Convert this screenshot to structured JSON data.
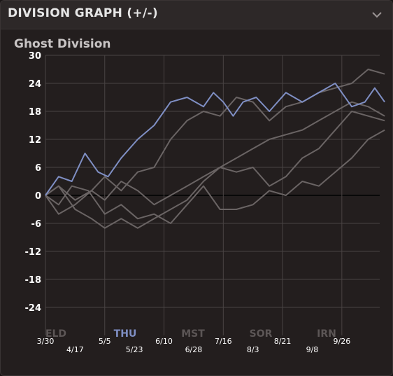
{
  "header": {
    "title": "DIVISION GRAPH (+/-)",
    "toggle_icon": "chevron-down-icon"
  },
  "chart_title": "Ghost Division",
  "tabs": [
    {
      "label": "ELD",
      "active": false
    },
    {
      "label": "THU",
      "active": true
    },
    {
      "label": "MST",
      "active": false
    },
    {
      "label": "SOR",
      "active": false
    },
    {
      "label": "IRN",
      "active": false
    }
  ],
  "colors": {
    "highlight": "#7f8fc4",
    "other": "#6a6464",
    "grid": "#4a4444",
    "zero_line": "#000000"
  },
  "chart_data": {
    "type": "line",
    "title": "Ghost Division",
    "xlabel": "",
    "ylabel": "",
    "ylim": [
      -30,
      30
    ],
    "yticks": [
      "30",
      "24",
      "18",
      "12",
      "6",
      "0",
      "-6",
      "-12",
      "-18",
      "-24"
    ],
    "x_tick_labels": [
      "3/30",
      "4/17",
      "5/5",
      "5/23",
      "6/10",
      "6/28",
      "7/16",
      "8/3",
      "8/21",
      "9/8",
      "9/26"
    ],
    "x_range_days": [
      0,
      203
    ],
    "grid": true,
    "series": [
      {
        "team": "THU",
        "highlight": true,
        "points": [
          [
            0,
            0
          ],
          [
            8,
            4
          ],
          [
            16,
            3
          ],
          [
            24,
            9
          ],
          [
            32,
            5
          ],
          [
            38,
            4
          ],
          [
            46,
            8
          ],
          [
            56,
            12
          ],
          [
            66,
            15
          ],
          [
            76,
            20
          ],
          [
            86,
            21
          ],
          [
            96,
            19
          ],
          [
            102,
            22
          ],
          [
            108,
            20
          ],
          [
            114,
            17
          ],
          [
            120,
            20
          ],
          [
            128,
            21
          ],
          [
            136,
            18
          ],
          [
            146,
            22
          ],
          [
            156,
            20
          ],
          [
            166,
            22
          ],
          [
            176,
            24
          ],
          [
            186,
            19
          ],
          [
            194,
            20
          ],
          [
            200,
            23
          ],
          [
            206,
            20
          ]
        ]
      },
      {
        "team": "ELD",
        "points": [
          [
            0,
            0
          ],
          [
            8,
            -2
          ],
          [
            16,
            2
          ],
          [
            26,
            1
          ],
          [
            36,
            -4
          ],
          [
            46,
            -2
          ],
          [
            56,
            -5
          ],
          [
            66,
            -4
          ],
          [
            76,
            -6
          ],
          [
            86,
            -2
          ],
          [
            96,
            2
          ],
          [
            106,
            -3
          ],
          [
            116,
            -3
          ],
          [
            126,
            -2
          ],
          [
            136,
            1
          ],
          [
            146,
            0
          ],
          [
            156,
            3
          ],
          [
            166,
            2
          ],
          [
            176,
            5
          ],
          [
            186,
            8
          ],
          [
            196,
            12
          ],
          [
            206,
            14
          ]
        ]
      },
      {
        "team": "MST",
        "points": [
          [
            0,
            0
          ],
          [
            8,
            2
          ],
          [
            18,
            -3
          ],
          [
            28,
            -5
          ],
          [
            36,
            -7
          ],
          [
            46,
            -5
          ],
          [
            56,
            -7
          ],
          [
            66,
            -5
          ],
          [
            76,
            -3
          ],
          [
            86,
            -1
          ],
          [
            96,
            3
          ],
          [
            106,
            6
          ],
          [
            116,
            5
          ],
          [
            126,
            6
          ],
          [
            136,
            2
          ],
          [
            146,
            4
          ],
          [
            156,
            8
          ],
          [
            166,
            10
          ],
          [
            176,
            14
          ],
          [
            186,
            18
          ],
          [
            196,
            17
          ],
          [
            206,
            16
          ]
        ]
      },
      {
        "team": "SOR",
        "points": [
          [
            0,
            0
          ],
          [
            8,
            -4
          ],
          [
            18,
            -2
          ],
          [
            28,
            1
          ],
          [
            36,
            -1
          ],
          [
            46,
            3
          ],
          [
            56,
            1
          ],
          [
            66,
            -2
          ],
          [
            76,
            0
          ],
          [
            86,
            2
          ],
          [
            96,
            4
          ],
          [
            106,
            6
          ],
          [
            116,
            8
          ],
          [
            126,
            10
          ],
          [
            136,
            12
          ],
          [
            146,
            13
          ],
          [
            156,
            14
          ],
          [
            166,
            16
          ],
          [
            176,
            18
          ],
          [
            186,
            20
          ],
          [
            196,
            19
          ],
          [
            206,
            17
          ]
        ]
      },
      {
        "team": "IRN",
        "points": [
          [
            0,
            0
          ],
          [
            8,
            2
          ],
          [
            18,
            -1
          ],
          [
            28,
            1
          ],
          [
            36,
            4
          ],
          [
            46,
            1
          ],
          [
            56,
            5
          ],
          [
            66,
            6
          ],
          [
            76,
            12
          ],
          [
            86,
            16
          ],
          [
            96,
            18
          ],
          [
            106,
            17
          ],
          [
            116,
            21
          ],
          [
            126,
            20
          ],
          [
            136,
            16
          ],
          [
            146,
            19
          ],
          [
            156,
            20
          ],
          [
            166,
            22
          ],
          [
            176,
            23
          ],
          [
            186,
            24
          ],
          [
            196,
            27
          ],
          [
            206,
            26
          ]
        ]
      }
    ]
  }
}
